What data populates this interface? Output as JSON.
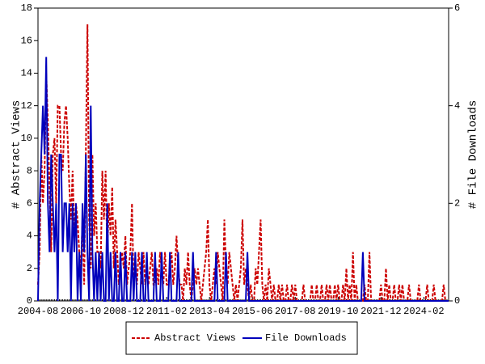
{
  "chart_data": {
    "type": "line",
    "x": [
      "2004-08",
      null,
      null,
      null,
      null,
      null,
      null,
      null,
      null,
      null,
      null,
      null,
      null,
      null,
      null,
      null,
      null,
      null,
      null,
      null,
      null,
      null,
      null,
      null,
      null,
      null,
      "2006-10",
      null,
      null,
      null,
      null,
      null,
      null,
      null,
      null,
      null,
      null,
      null,
      null,
      null,
      null,
      null,
      null,
      null,
      null,
      null,
      null,
      null,
      null,
      null,
      null,
      null,
      "2008-12",
      null,
      null,
      null,
      null,
      null,
      null,
      null,
      null,
      null,
      null,
      null,
      null,
      null,
      null,
      null,
      null,
      null,
      null,
      null,
      null,
      null,
      null,
      null,
      null,
      null,
      "2011-02",
      null,
      null,
      null,
      null,
      null,
      null,
      null,
      null,
      null,
      null,
      null,
      null,
      null,
      null,
      null,
      null,
      null,
      null,
      null,
      null,
      null,
      null,
      null,
      null,
      null,
      "2013-04",
      null,
      null,
      null,
      null,
      null,
      null,
      null,
      null,
      null,
      null,
      null,
      null,
      null,
      null,
      null,
      null,
      null,
      null,
      null,
      null,
      null,
      null,
      null,
      null,
      null,
      "2015-06",
      null,
      null,
      null,
      null,
      null,
      null,
      null,
      null,
      null,
      null,
      null,
      null,
      null,
      null,
      null,
      null,
      null,
      null,
      null,
      null,
      null,
      null,
      null,
      null,
      null,
      "2017-08",
      null,
      null,
      null,
      null,
      null,
      null,
      null,
      null,
      null,
      null,
      null,
      null,
      null,
      null,
      null,
      null,
      null,
      null,
      null,
      null,
      null,
      null,
      null,
      null,
      null,
      "2019-10",
      null,
      null,
      null,
      null,
      null,
      null,
      null,
      null,
      null,
      null,
      null,
      null,
      null,
      null,
      null,
      null,
      null,
      null,
      null,
      null,
      null,
      null,
      null,
      null,
      null,
      "2021-12",
      null,
      null,
      null,
      null,
      null,
      null,
      null,
      null,
      null,
      null,
      null,
      null,
      null,
      null,
      null,
      null,
      null,
      null,
      null,
      null,
      null,
      null,
      null,
      null,
      null,
      "2024-02",
      null,
      null,
      null,
      null,
      null,
      null,
      null,
      null,
      null,
      null,
      null,
      null,
      null,
      null,
      null
    ],
    "y_label": "# Abstract Views",
    "y2_label": "# File Downloads",
    "ylim": [
      0,
      18
    ],
    "yticks": [
      0,
      2,
      4,
      6,
      8,
      10,
      12,
      14,
      16,
      18
    ],
    "y2lim": [
      0,
      6
    ],
    "y2ticks": [
      0,
      2,
      4,
      6
    ],
    "series": [
      {
        "name": "Abstract Views",
        "color": "#cc0000",
        "dash": true,
        "values": [
          1,
          3,
          9,
          6,
          8,
          14,
          11,
          7,
          3,
          9,
          10,
          6,
          12,
          12,
          9,
          8,
          11,
          12,
          10,
          7,
          5,
          8,
          4,
          6,
          5,
          3,
          2,
          5,
          1,
          9,
          17,
          5,
          2,
          9,
          4,
          6,
          3,
          3,
          2,
          8,
          5,
          8,
          3,
          6,
          4,
          7,
          2,
          5,
          3,
          1,
          2,
          3,
          2,
          4,
          1,
          2,
          3,
          6,
          1,
          2,
          1,
          3,
          2,
          1,
          3,
          1,
          2,
          1,
          2,
          3,
          1,
          1,
          2,
          1,
          3,
          2,
          1,
          3,
          1,
          1,
          2,
          3,
          1,
          2,
          4,
          2,
          1,
          1,
          0,
          2,
          1,
          3,
          1,
          0,
          1,
          2,
          1,
          2,
          1,
          0,
          1,
          2,
          3,
          5,
          1,
          0,
          1,
          2,
          1,
          3,
          2,
          1,
          0,
          5,
          2,
          1,
          3,
          2,
          1,
          0,
          1,
          0,
          1,
          2,
          5,
          1,
          2,
          1,
          0,
          1,
          0,
          0,
          2,
          1,
          3,
          5,
          1,
          0,
          1,
          0,
          2,
          1,
          0,
          1,
          0,
          0,
          1,
          0,
          1,
          0,
          0,
          1,
          0,
          0,
          1,
          0,
          1,
          0,
          0,
          0,
          0,
          1,
          0,
          0,
          0,
          0,
          1,
          0,
          0,
          1,
          0,
          0,
          1,
          0,
          0,
          1,
          0,
          1,
          0,
          0,
          1,
          0,
          1,
          0,
          0,
          1,
          0,
          2,
          0,
          1,
          0,
          3,
          0,
          1,
          0,
          0,
          0,
          0,
          1,
          0,
          0,
          3,
          0,
          0,
          0,
          0,
          0,
          0,
          1,
          0,
          0,
          2,
          0,
          1,
          0,
          0,
          1,
          0,
          0,
          1,
          0,
          1,
          0,
          0,
          0,
          1,
          0,
          0,
          0,
          0,
          0,
          1,
          0,
          0,
          0,
          0,
          1,
          0,
          0,
          0,
          1,
          0,
          0,
          0,
          0,
          0,
          1,
          0,
          0,
          0
        ]
      },
      {
        "name": "File Downloads",
        "color": "#0000bb",
        "axis": "y2",
        "values": [
          0,
          2,
          3,
          4,
          3,
          5,
          2,
          1,
          3,
          2,
          1,
          2,
          0,
          3,
          3,
          1,
          2,
          2,
          1,
          2,
          0,
          2,
          1,
          2,
          0,
          1,
          0,
          2,
          1,
          3,
          1,
          0,
          4,
          1,
          0,
          1,
          0,
          1,
          0,
          1,
          0,
          0,
          2,
          0,
          1,
          0,
          0,
          1,
          0,
          0,
          1,
          0,
          0,
          1,
          0,
          0,
          0,
          1,
          0,
          1,
          0,
          0,
          0,
          1,
          0,
          0,
          1,
          0,
          0,
          0,
          0,
          1,
          0,
          0,
          0,
          1,
          0,
          0,
          0,
          0,
          1,
          0,
          0,
          0,
          0,
          1,
          0,
          0,
          0,
          0,
          0,
          0,
          0,
          0,
          1,
          0,
          0,
          0,
          0,
          0,
          0,
          0,
          0,
          0,
          0,
          0,
          0,
          0,
          1,
          0,
          0,
          0,
          0,
          0,
          1,
          0,
          0,
          0,
          0,
          0,
          0,
          0,
          0,
          0,
          0,
          0,
          0,
          1,
          0,
          0,
          0,
          0,
          0,
          0,
          0,
          0,
          0,
          0,
          0,
          0,
          0,
          0,
          0,
          0,
          0,
          0,
          0,
          0,
          0,
          0,
          0,
          0,
          0,
          0,
          0,
          0,
          0,
          0,
          0,
          0,
          0,
          0,
          0,
          0,
          0,
          0,
          0,
          0,
          0,
          0,
          0,
          0,
          0,
          0,
          0,
          0,
          0,
          0,
          0,
          0,
          0,
          0,
          0,
          0,
          0,
          0,
          0,
          0,
          0,
          0,
          0,
          0,
          0,
          0,
          0,
          0,
          0,
          1,
          0,
          0,
          0,
          0,
          0,
          0,
          0,
          0,
          0,
          0,
          0,
          0,
          0,
          0,
          0,
          0,
          0,
          0,
          0,
          0,
          0,
          0,
          0,
          0,
          0,
          0,
          0,
          0,
          0,
          0,
          0,
          0,
          0,
          0,
          0,
          0,
          0,
          0,
          0,
          0,
          0,
          0,
          0,
          0,
          0,
          0,
          0,
          0,
          0,
          0,
          0,
          0
        ]
      }
    ]
  }
}
